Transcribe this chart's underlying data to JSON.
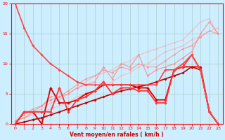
{
  "bg_color": "#cceeff",
  "grid_color": "#aacccc",
  "axis_color": "#ff0000",
  "xlabel": "Vent moyen/en rafales ( km/h )",
  "xlabel_color": "#cc0000",
  "xlim": [
    -0.5,
    23.5
  ],
  "ylim": [
    0,
    20
  ],
  "yticks": [
    0,
    5,
    10,
    15,
    20
  ],
  "xticks": [
    0,
    1,
    2,
    3,
    4,
    5,
    6,
    7,
    8,
    9,
    10,
    11,
    12,
    13,
    14,
    15,
    16,
    17,
    18,
    19,
    20,
    21,
    22,
    23
  ],
  "lines": [
    {
      "x": [
        0,
        1,
        2,
        3,
        4,
        5,
        6,
        7,
        8,
        9,
        10,
        11,
        12,
        13,
        14,
        15,
        16,
        17,
        18,
        19,
        20,
        21,
        22,
        23
      ],
      "y": [
        0.5,
        1.0,
        1.5,
        2.0,
        2.5,
        3.0,
        3.5,
        4.5,
        5.0,
        5.5,
        6.5,
        7.0,
        8.0,
        8.5,
        9.5,
        10.0,
        11.0,
        12.0,
        12.5,
        13.0,
        14.0,
        14.5,
        15.5,
        16.0
      ],
      "color": "#ffaaaa",
      "lw": 0.8,
      "marker": "D",
      "ms": 1.5,
      "alpha": 0.7
    },
    {
      "x": [
        0,
        1,
        2,
        3,
        4,
        5,
        6,
        7,
        8,
        9,
        10,
        11,
        12,
        13,
        14,
        15,
        16,
        17,
        18,
        19,
        20,
        21,
        22,
        23
      ],
      "y": [
        0.5,
        1.0,
        1.8,
        2.5,
        3.5,
        4.0,
        5.0,
        6.0,
        7.0,
        8.0,
        8.5,
        9.0,
        10.0,
        10.5,
        11.5,
        12.0,
        12.5,
        13.0,
        13.5,
        14.0,
        15.5,
        17.0,
        17.5,
        15.0
      ],
      "color": "#ffaaaa",
      "lw": 0.8,
      "marker": "D",
      "ms": 1.5,
      "alpha": 0.7
    },
    {
      "x": [
        0,
        1,
        2,
        3,
        4,
        5,
        6,
        7,
        8,
        9,
        10,
        11,
        12,
        13,
        14,
        15,
        16,
        17,
        18,
        19,
        20,
        21,
        22,
        23
      ],
      "y": [
        0.5,
        1.0,
        2.0,
        3.0,
        4.0,
        4.5,
        5.0,
        6.0,
        6.5,
        7.0,
        9.5,
        7.5,
        10.0,
        9.5,
        11.5,
        8.0,
        9.0,
        9.5,
        10.0,
        11.0,
        12.0,
        15.0,
        17.0,
        15.0
      ],
      "color": "#ff8888",
      "lw": 0.9,
      "marker": "D",
      "ms": 1.8,
      "alpha": 0.8
    },
    {
      "x": [
        0,
        1,
        2,
        3,
        4,
        5,
        6,
        7,
        8,
        9,
        10,
        11,
        12,
        13,
        14,
        15,
        16,
        17,
        18,
        19,
        20,
        21,
        22,
        23
      ],
      "y": [
        0.5,
        1.5,
        2.5,
        3.0,
        4.5,
        4.5,
        5.5,
        6.5,
        7.5,
        8.0,
        9.0,
        8.5,
        9.5,
        9.0,
        10.0,
        9.5,
        9.5,
        10.5,
        11.5,
        12.5,
        13.0,
        14.5,
        15.5,
        15.0
      ],
      "color": "#ff8888",
      "lw": 0.9,
      "marker": "D",
      "ms": 1.8,
      "alpha": 0.7
    },
    {
      "x": [
        0,
        1,
        2,
        3,
        4,
        5,
        6,
        7,
        8,
        9,
        10,
        11,
        12,
        13,
        14,
        15,
        16,
        17,
        18,
        19,
        20,
        21,
        22,
        23
      ],
      "y": [
        0.0,
        0.3,
        0.7,
        1.0,
        1.5,
        2.0,
        2.5,
        3.0,
        3.5,
        4.0,
        4.5,
        5.0,
        5.5,
        5.8,
        6.2,
        6.5,
        7.0,
        7.5,
        8.0,
        8.5,
        9.5,
        9.0,
        2.0,
        0.0
      ],
      "color": "#bb0000",
      "lw": 1.2,
      "marker": "D",
      "ms": 2.0,
      "alpha": 1.0
    },
    {
      "x": [
        0,
        1,
        2,
        3,
        4,
        5,
        6,
        7,
        8,
        9,
        10,
        11,
        12,
        13,
        14,
        15,
        16,
        17,
        18,
        19,
        20,
        21,
        22,
        23
      ],
      "y": [
        0.0,
        2.0,
        2.0,
        0.0,
        6.0,
        3.5,
        3.5,
        4.0,
        5.0,
        5.5,
        6.5,
        6.5,
        6.5,
        6.5,
        6.0,
        6.0,
        4.0,
        4.0,
        9.0,
        9.5,
        9.5,
        9.5,
        2.0,
        0.0
      ],
      "color": "#dd0000",
      "lw": 1.3,
      "marker": "D",
      "ms": 2.2,
      "alpha": 1.0
    },
    {
      "x": [
        0,
        1,
        2,
        3,
        4,
        5,
        6,
        7,
        8,
        9,
        10,
        11,
        12,
        13,
        14,
        15,
        16,
        17,
        18,
        19,
        20,
        21,
        22,
        23
      ],
      "y": [
        0.0,
        2.0,
        2.0,
        2.0,
        2.0,
        6.0,
        2.0,
        4.0,
        4.5,
        5.5,
        7.0,
        5.0,
        6.0,
        6.0,
        5.5,
        5.5,
        3.5,
        3.5,
        9.0,
        9.5,
        11.5,
        9.0,
        2.0,
        0.0
      ],
      "color": "#ff3333",
      "lw": 1.3,
      "marker": "D",
      "ms": 2.2,
      "alpha": 1.0
    },
    {
      "x": [
        0,
        1,
        2,
        3,
        4,
        5,
        6,
        7,
        8,
        9,
        10,
        11,
        12,
        13,
        14,
        15,
        16,
        17,
        18,
        19,
        20,
        21,
        22,
        23
      ],
      "y": [
        20.0,
        16.0,
        13.0,
        11.5,
        10.0,
        9.0,
        8.0,
        7.0,
        6.5,
        6.5,
        6.5,
        6.5,
        6.5,
        6.5,
        6.5,
        6.5,
        6.5,
        9.0,
        9.0,
        10.0,
        11.5,
        9.0,
        2.0,
        0.0
      ],
      "color": "#ff4444",
      "lw": 1.2,
      "marker": "D",
      "ms": 2.0,
      "alpha": 1.0
    }
  ]
}
